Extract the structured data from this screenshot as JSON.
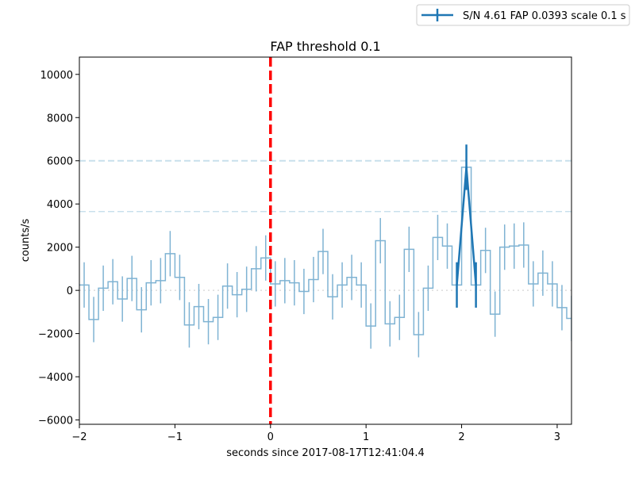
{
  "chart_data": {
    "type": "line",
    "title": "FAP threshold 0.1",
    "xlabel": "seconds since 2017-08-17T12:41:04.4",
    "ylabel": "counts/s",
    "xlim": [
      -2.0,
      3.15
    ],
    "ylim": [
      -6200,
      10800
    ],
    "x_ticks": [
      -2,
      -1,
      0,
      1,
      2,
      3
    ],
    "x_tick_labels": [
      "−2",
      "−1",
      "0",
      "1",
      "2",
      "3"
    ],
    "y_ticks": [
      -6000,
      -4000,
      -2000,
      0,
      2000,
      4000,
      6000,
      8000,
      10000
    ],
    "y_tick_labels": [
      "−6000",
      "−4000",
      "−2000",
      "0",
      "2000",
      "4000",
      "6000",
      "8000",
      "10000"
    ],
    "grid": false,
    "legend_position": "top-right, outside axes",
    "bin_width": 0.1,
    "lightcurve": {
      "color": "#7fb3d3",
      "error": 1050,
      "bin_starts": [
        -2.0,
        -1.9,
        -1.8,
        -1.7,
        -1.6,
        -1.5,
        -1.4,
        -1.3,
        -1.2,
        -1.1,
        -1.0,
        -0.9,
        -0.8,
        -0.7,
        -0.6,
        -0.5,
        -0.4,
        -0.3,
        -0.2,
        -0.1,
        0.0,
        0.1,
        0.2,
        0.3,
        0.4,
        0.5,
        0.6,
        0.7,
        0.8,
        0.9,
        1.0,
        1.1,
        1.2,
        1.3,
        1.4,
        1.5,
        1.6,
        1.7,
        1.8,
        1.9,
        2.0,
        2.1,
        2.2,
        2.3,
        2.4,
        2.5,
        2.6,
        2.7,
        2.8,
        2.9,
        3.0,
        3.1
      ],
      "values": [
        250,
        -1350,
        100,
        400,
        -400,
        550,
        -900,
        350,
        450,
        1700,
        600,
        -1600,
        -750,
        -1450,
        -1250,
        200,
        -200,
        50,
        1000,
        1500,
        300,
        450,
        350,
        -50,
        500,
        1800,
        -300,
        250,
        600,
        250,
        -1650,
        2300,
        -1550,
        -1250,
        1900,
        -2050,
        100,
        2450,
        2050,
        250,
        5700,
        250,
        1850,
        -1100,
        2000,
        2050,
        2100,
        300,
        800,
        300,
        -800,
        -1300
      ]
    },
    "reference_lines": [
      {
        "y": 0,
        "color": "#dcdcdc",
        "style": "dotted"
      },
      {
        "y": 6000,
        "color": "#c8e0ec",
        "style": "dashed"
      },
      {
        "y": 3650,
        "color": "#c8e0ec",
        "style": "dashed"
      }
    ],
    "trigger_line": {
      "x": 0,
      "color": "#ff0000",
      "style": "dashed"
    },
    "detection": {
      "name": "S/N 4.61 FAP 0.0393 scale 0.1 s",
      "color": "#1f77b4",
      "x": [
        1.95,
        2.05,
        2.15
      ],
      "y": [
        250,
        5700,
        250
      ],
      "error": 1050
    }
  }
}
